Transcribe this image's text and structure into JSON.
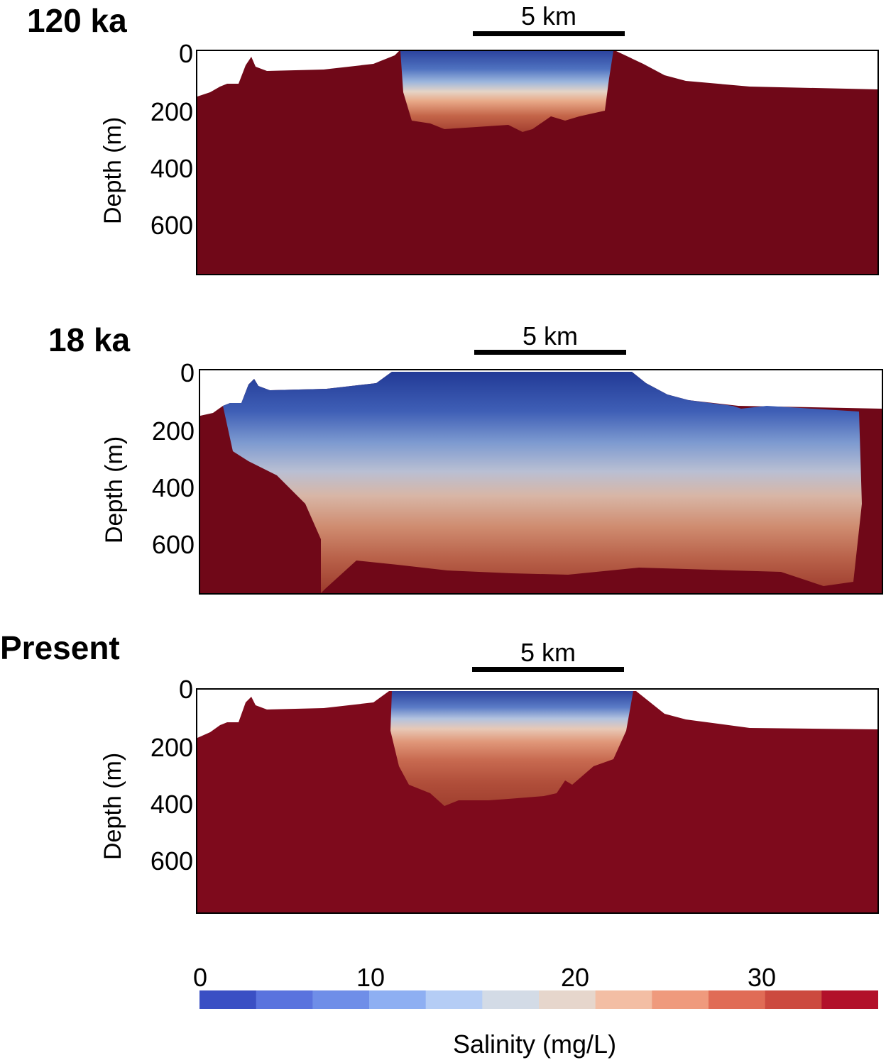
{
  "panels": [
    {
      "title": "120 ka",
      "scale_bar": "5 km",
      "ylabel": "Depth (m)",
      "yticks": [
        "0",
        "200",
        "400",
        "600"
      ],
      "state": "glacial-highstand"
    },
    {
      "title": "18 ka",
      "scale_bar": "5 km",
      "ylabel": "Depth (m)",
      "yticks": [
        "0",
        "200",
        "400",
        "600"
      ],
      "state": "lgm-lowstand"
    },
    {
      "title": "Present",
      "scale_bar": "5 km",
      "ylabel": "Depth (m)",
      "yticks": [
        "0",
        "200",
        "400",
        "600"
      ],
      "state": "present"
    }
  ],
  "colorbar": {
    "title": "Salinity (mg/L)",
    "ticks": [
      "0",
      "10",
      "20",
      "30"
    ],
    "tick_values": [
      0,
      10,
      20,
      30
    ],
    "range": [
      0,
      36
    ],
    "colors": [
      "#3a4fc4",
      "#5a73de",
      "#6f8ee8",
      "#8eaff2",
      "#b5cdf5",
      "#d3dbe6",
      "#e6d6cc",
      "#f3bea4",
      "#ef9a7d",
      "#e06c56",
      "#cc4a3f",
      "#b2102a"
    ]
  },
  "colors": {
    "saline": "#7a0a1c",
    "fresh": "#2a3f9a"
  }
}
